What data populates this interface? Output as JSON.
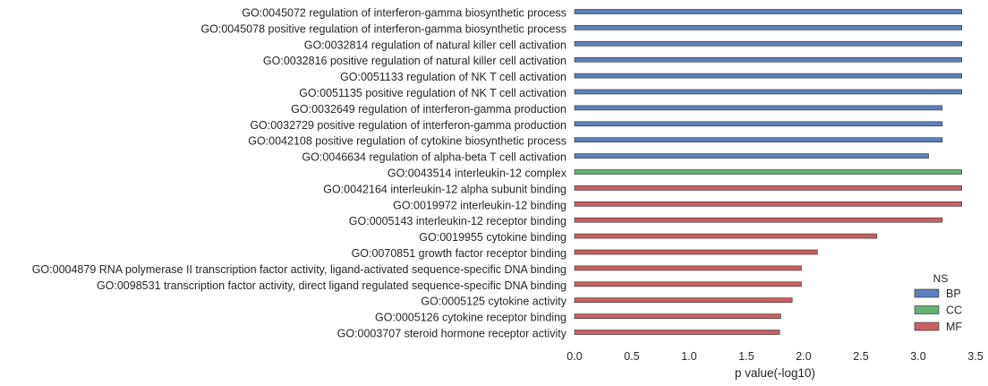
{
  "chart_data": {
    "type": "bar",
    "orientation": "horizontal",
    "title": "",
    "xlabel": "p value(-log10)",
    "ylabel": "",
    "xlim": [
      0,
      3.5
    ],
    "xticks": [
      "0.0",
      "0.5",
      "1.0",
      "1.5",
      "2.0",
      "2.5",
      "3.0",
      "3.5"
    ],
    "grid": false,
    "legend": {
      "title": "NS",
      "placement": "bottom-right",
      "entries": [
        {
          "name": "BP",
          "color": "#4c72b0"
        },
        {
          "name": "CC",
          "color": "#55a868"
        },
        {
          "name": "MF",
          "color": "#c44e52"
        }
      ]
    },
    "categories": [
      "GO:0045072 regulation of interferon-gamma biosynthetic process",
      "GO:0045078 positive regulation of interferon-gamma biosynthetic process",
      "GO:0032814 regulation of natural killer cell activation",
      "GO:0032816 positive regulation of natural killer cell activation",
      "GO:0051133 regulation of NK T cell activation",
      "GO:0051135 positive regulation of NK T cell activation",
      "GO:0032649 regulation of interferon-gamma production",
      "GO:0032729 positive regulation of interferon-gamma production",
      "GO:0042108 positive regulation of cytokine biosynthetic process",
      "GO:0046634 regulation of alpha-beta T cell activation",
      "GO:0043514 interleukin-12 complex",
      "GO:0042164 interleukin-12 alpha subunit binding",
      "GO:0019972 interleukin-12 binding",
      "GO:0005143 interleukin-12 receptor binding",
      "GO:0019955 cytokine binding",
      "GO:0070851 growth factor receptor binding",
      "GO:0004879 RNA polymerase II transcription factor activity, ligand-activated sequence-specific DNA binding",
      "GO:0098531 transcription factor activity, direct ligand regulated sequence-specific DNA binding",
      "GO:0005125 cytokine activity",
      "GO:0005126 cytokine receptor binding",
      "GO:0003707 steroid hormone receptor activity"
    ],
    "values": [
      3.38,
      3.38,
      3.38,
      3.38,
      3.38,
      3.38,
      3.21,
      3.21,
      3.21,
      3.09,
      3.38,
      3.38,
      3.38,
      3.21,
      2.64,
      2.12,
      1.98,
      1.98,
      1.9,
      1.8,
      1.79
    ],
    "groups": [
      "BP",
      "BP",
      "BP",
      "BP",
      "BP",
      "BP",
      "BP",
      "BP",
      "BP",
      "BP",
      "CC",
      "MF",
      "MF",
      "MF",
      "MF",
      "MF",
      "MF",
      "MF",
      "MF",
      "MF",
      "MF"
    ]
  }
}
